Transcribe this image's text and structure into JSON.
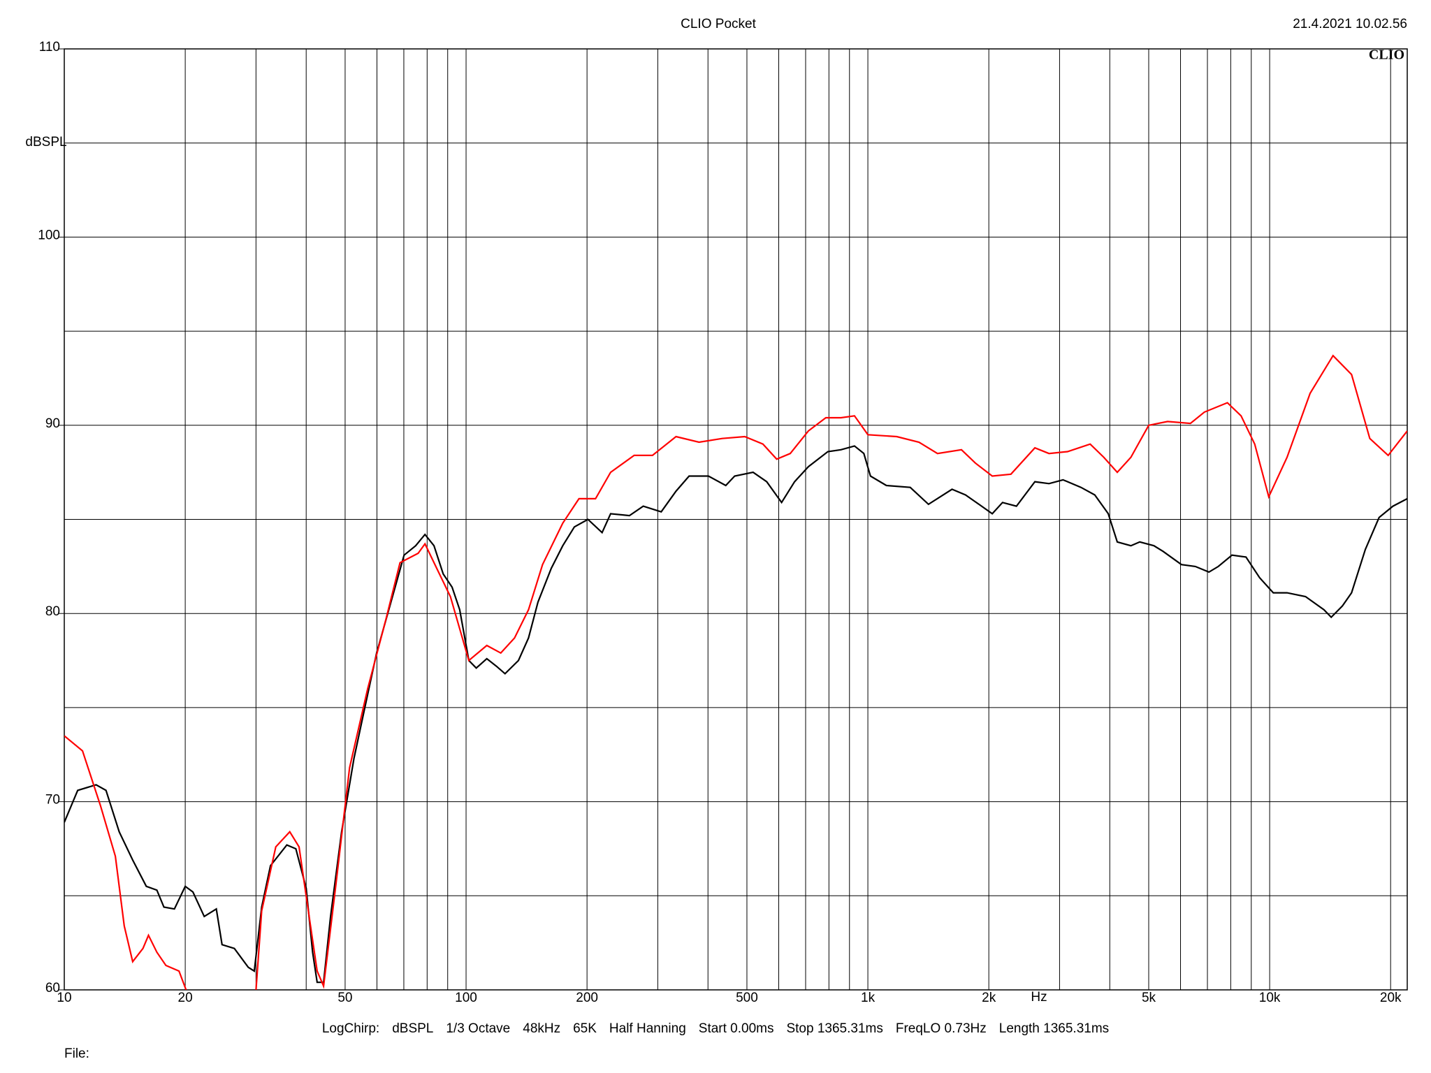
{
  "chart_data": {
    "type": "line",
    "title": "CLIO Pocket",
    "timestamp": "21.4.2021 10.02.56",
    "logo": "CLIO",
    "ylabel": "dBSPL",
    "xunit": "Hz",
    "xscale": "log",
    "xlim": [
      10,
      22000
    ],
    "ylim": [
      60,
      110
    ],
    "xticks": [
      10,
      20,
      50,
      100,
      200,
      500,
      {
        "value": 1000,
        "label": "1k"
      },
      {
        "value": 2000,
        "label": "2k"
      },
      {
        "value": 5000,
        "label": "5k"
      },
      {
        "value": 10000,
        "label": "10k"
      },
      {
        "value": 20000,
        "label": "20k"
      }
    ],
    "xgrid_minor": [
      30,
      40,
      60,
      70,
      80,
      90,
      300,
      400,
      600,
      700,
      800,
      900,
      3000,
      4000,
      6000,
      7000,
      8000,
      9000
    ],
    "yticks": [
      60,
      70,
      80,
      90,
      100,
      110
    ],
    "ygrid_minor": [
      65,
      75,
      85,
      95,
      105
    ],
    "grid": true,
    "footer": [
      "LogChirp:",
      "dBSPL",
      "1/3 Octave",
      "48kHz",
      "65K",
      "Half Hanning",
      "Start 0.00ms",
      "Stop 1365.31ms",
      "FreqLO 0.73Hz",
      "Length 1365.31ms"
    ],
    "file_label": "File:",
    "series": [
      {
        "color": "#000000",
        "x": [
          10,
          10.8,
          12,
          12.7,
          13.7,
          14.8,
          16,
          17,
          17.7,
          18.8,
          20,
          20.9,
          22.3,
          23.9,
          24.7,
          26.5,
          28.7,
          29.7,
          31,
          32.6,
          35.8,
          37.7,
          40,
          41.5,
          42.6,
          44.2,
          46,
          49,
          52.6,
          56.9,
          59.9,
          65,
          70.1,
          74.9,
          79,
          83.2,
          87.7,
          92.3,
          96.4,
          101.6,
          106,
          112.6,
          118.9,
          125,
          135,
          143,
          151,
          163,
          174,
          186,
          201,
          218,
          229,
          255,
          276,
          306,
          333,
          359,
          401,
          443,
          466,
          518,
          560,
          610,
          657,
          711,
          795,
          857,
          926,
          977,
          1015,
          1112,
          1275,
          1415,
          1620,
          1750,
          1890,
          2040,
          2164,
          2343,
          2604,
          2824,
          3060,
          3392,
          3670,
          3966,
          4175,
          4515,
          4751,
          5150,
          5430,
          6030,
          6530,
          7060,
          7450,
          8060,
          8730,
          9440,
          10210,
          11050,
          12280,
          13650,
          14230,
          15170,
          15990,
          17300,
          18720,
          20270,
          22000
        ],
        "values": [
          68.9,
          70.6,
          70.9,
          70.6,
          68.4,
          66.9,
          65.5,
          65.3,
          64.4,
          64.3,
          65.5,
          65.2,
          63.9,
          64.3,
          62.4,
          62.2,
          61.2,
          61.0,
          64.4,
          66.6,
          67.7,
          67.5,
          65.4,
          62.0,
          60.4,
          60.4,
          63.9,
          68.4,
          72.3,
          75.7,
          77.9,
          80.6,
          83.1,
          83.6,
          84.2,
          83.6,
          82.1,
          81.4,
          80.2,
          77.5,
          77.1,
          77.6,
          77.2,
          76.8,
          77.5,
          78.7,
          80.6,
          82.4,
          83.6,
          84.6,
          85.0,
          84.3,
          85.3,
          85.2,
          85.7,
          85.4,
          86.5,
          87.3,
          87.3,
          86.8,
          87.3,
          87.5,
          87.0,
          85.9,
          87.0,
          87.8,
          88.6,
          88.7,
          88.9,
          88.5,
          87.3,
          86.8,
          86.7,
          85.8,
          86.6,
          86.3,
          85.8,
          85.3,
          85.9,
          85.7,
          87.0,
          86.9,
          87.1,
          86.7,
          86.3,
          85.3,
          83.8,
          83.6,
          83.8,
          83.6,
          83.3,
          82.6,
          82.5,
          82.2,
          82.5,
          83.1,
          83.0,
          81.9,
          81.1,
          81.1,
          80.9,
          80.2,
          79.8,
          80.4,
          81.1,
          83.4,
          85.1,
          85.7,
          86.1
        ]
      },
      {
        "color": "#ff0000",
        "x": [
          10,
          11.1,
          12.3,
          13.4,
          14.1,
          14.8,
          15.7,
          16.2,
          17,
          17.9,
          19.3,
          20.1,
          25,
          30,
          31,
          33.6,
          36.4,
          38.4,
          41,
          42.6,
          44.2,
          47.3,
          51.3,
          56.9,
          63.2,
          68.5,
          76,
          79,
          84.5,
          91.4,
          101.6,
          112.6,
          122,
          132,
          143,
          155,
          174,
          191,
          210,
          229,
          262,
          291,
          333,
          380,
          434,
          494,
          548,
          593,
          641,
          711,
          786,
          857,
          926,
          1000,
          1180,
          1340,
          1490,
          1710,
          1850,
          2040,
          2270,
          2604,
          2824,
          3140,
          3575,
          3865,
          4175,
          4515,
          5000,
          5570,
          6350,
          6880,
          7850,
          8490,
          9180,
          9950,
          11050,
          12610,
          14380,
          15990,
          17750,
          19720,
          22000
        ],
        "values": [
          73.5,
          72.7,
          69.8,
          67.1,
          63.4,
          61.5,
          62.2,
          62.9,
          62.0,
          61.3,
          61.0,
          60.0,
          null,
          60.0,
          64.2,
          67.6,
          68.4,
          67.6,
          63.4,
          61.0,
          60.2,
          65.4,
          71.8,
          76.0,
          79.7,
          82.7,
          83.2,
          83.7,
          82.4,
          80.9,
          77.5,
          78.3,
          77.9,
          78.7,
          80.2,
          82.6,
          84.8,
          86.1,
          86.1,
          87.5,
          88.4,
          88.4,
          89.4,
          89.1,
          89.3,
          89.4,
          89.0,
          88.2,
          88.5,
          89.7,
          90.4,
          90.4,
          90.5,
          89.5,
          89.4,
          89.1,
          88.5,
          88.7,
          88.0,
          87.3,
          87.4,
          88.8,
          88.5,
          88.6,
          89.0,
          88.3,
          87.5,
          88.3,
          90.0,
          90.2,
          90.1,
          90.7,
          91.2,
          90.5,
          89.0,
          86.2,
          88.3,
          91.7,
          93.7,
          92.7,
          89.3,
          88.4,
          89.7
        ]
      }
    ]
  }
}
